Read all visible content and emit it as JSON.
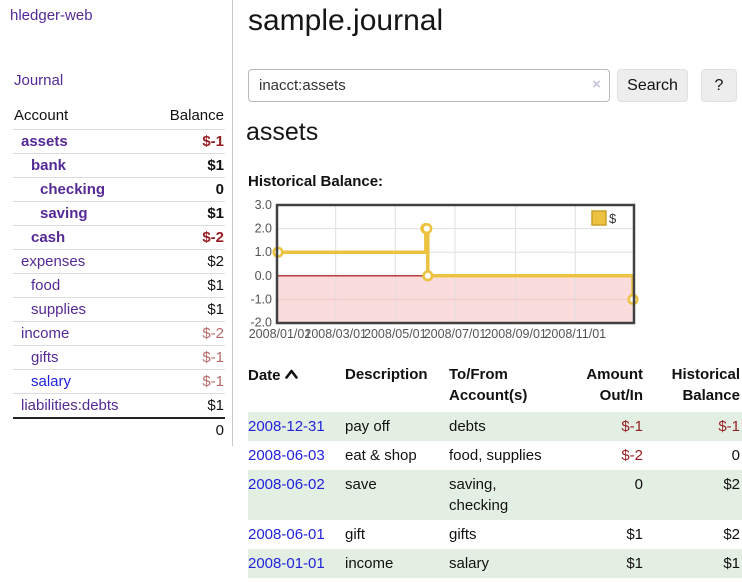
{
  "brand": "hledger-web",
  "nav": {
    "journal": "Journal"
  },
  "sidebar": {
    "col_account": "Account",
    "col_balance": "Balance",
    "accounts": [
      {
        "name": "assets",
        "balance": "$-1"
      },
      {
        "name": "bank",
        "balance": "$1"
      },
      {
        "name": "checking",
        "balance": "0"
      },
      {
        "name": "saving",
        "balance": "$1"
      },
      {
        "name": "cash",
        "balance": "$-2"
      },
      {
        "name": "expenses",
        "balance": "$2"
      },
      {
        "name": "food",
        "balance": "$1"
      },
      {
        "name": "supplies",
        "balance": "$1"
      },
      {
        "name": "income",
        "balance": "$-2"
      },
      {
        "name": "gifts",
        "balance": "$-1"
      },
      {
        "name": "salary",
        "balance": "$-1"
      },
      {
        "name": "liabilities:debts",
        "balance": "$1"
      }
    ],
    "total": "0"
  },
  "main": {
    "title": "sample.journal",
    "search": {
      "value": "inacct:assets",
      "clear_icon": "×",
      "search_button": "Search",
      "help_button": "?"
    },
    "account_heading": "assets",
    "chart_title": "Historical Balance:",
    "register": {
      "headers": {
        "date": "Date",
        "description": "Description",
        "tofrom": "To/From Account(s)",
        "amount": "Amount Out/In",
        "balance": "Historical Balance"
      },
      "rows": [
        {
          "date": "2008-12-31",
          "description": "pay off",
          "accounts": "debts",
          "amount": "$-1",
          "balance": "$-1"
        },
        {
          "date": "2008-06-03",
          "description": "eat & shop",
          "accounts": "food, supplies",
          "amount": "$-2",
          "balance": "0"
        },
        {
          "date": "2008-06-02",
          "description": "save",
          "accounts": "saving, checking",
          "amount": "0",
          "balance": "$2"
        },
        {
          "date": "2008-06-01",
          "description": "gift",
          "accounts": "gifts",
          "amount": "$1",
          "balance": "$2"
        },
        {
          "date": "2008-01-01",
          "description": "income",
          "accounts": "salary",
          "amount": "$1",
          "balance": "$1"
        }
      ]
    }
  },
  "colors": {
    "link_purple": "#552a96",
    "link_blue": "#2222dd",
    "negative_red": "#941f25",
    "negative_rose": "#b56a6a",
    "row_stripe_green": "#e3efe3",
    "series_yellow": "#edc240",
    "negative_region_pink": "#fbdcdc",
    "zero_line_red": "#a40000"
  },
  "chart_data": {
    "type": "line",
    "title": "Historical Balance:",
    "legend": [
      {
        "label": "$",
        "color": "#edc240"
      }
    ],
    "legend_position": "top-right",
    "grid": true,
    "step": "after",
    "ylim": [
      -2,
      3
    ],
    "yticks": [
      "3.0",
      "2.0",
      "1.0",
      "0.0",
      "-1.0",
      "-2.0"
    ],
    "xticks": [
      "2008/01/01",
      "2008/03/01",
      "2008/05/01",
      "2008/07/01",
      "2008/09/01",
      "2008/11/01"
    ],
    "xrange": [
      "2008-01-01",
      "2008-12-31"
    ],
    "series": [
      {
        "name": "$",
        "points": [
          [
            "2008-01-01",
            1
          ],
          [
            "2008-06-01",
            2
          ],
          [
            "2008-06-02",
            2
          ],
          [
            "2008-06-03",
            0
          ],
          [
            "2008-12-31",
            -1
          ]
        ]
      }
    ]
  }
}
